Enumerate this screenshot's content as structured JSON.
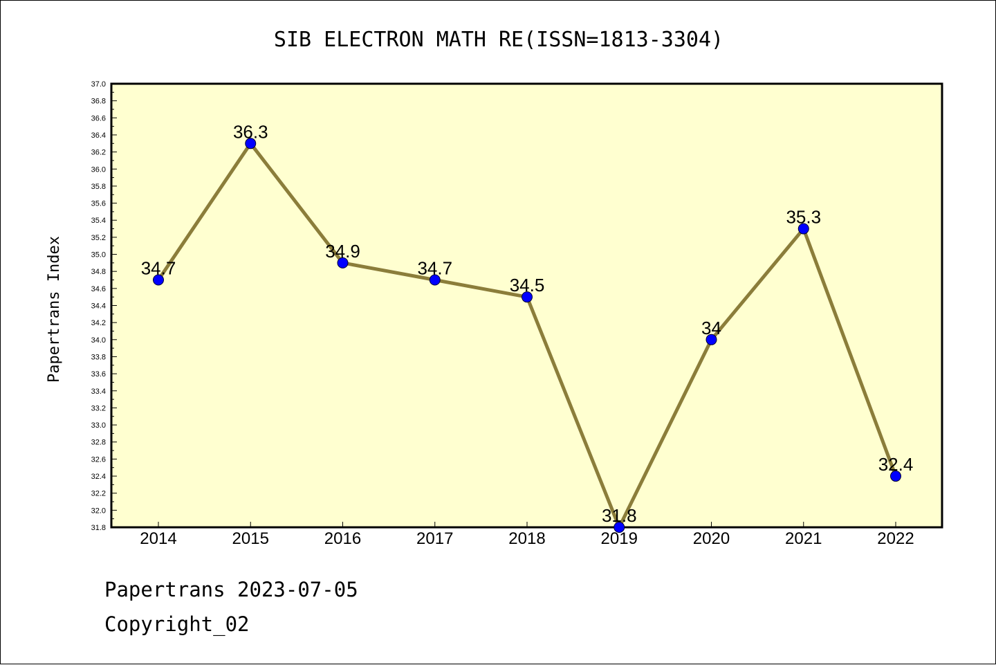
{
  "footer": {
    "line1": "Papertrans 2023-07-05",
    "line2": "Copyright_02"
  },
  "chart_data": {
    "type": "line",
    "title": "SIB ELECTRON MATH RE(ISSN=1813-3304)",
    "xlabel": "",
    "ylabel": "Papertrans Index",
    "categories": [
      "2014",
      "2015",
      "2016",
      "2017",
      "2018",
      "2019",
      "2020",
      "2021",
      "2022"
    ],
    "series": [
      {
        "values": [
          34.7,
          36.3,
          34.9,
          34.7,
          34.5,
          31.8,
          34.0,
          35.3,
          32.4
        ],
        "data_labels": [
          "34.7",
          "36.3",
          "34.9",
          "34.7",
          "34.5",
          "31.8",
          "34",
          "35.3",
          "32.4"
        ]
      }
    ],
    "ylim": [
      31.8,
      37.0
    ],
    "ytick_labels": [
      "31.8",
      "32.0",
      "32.2",
      "32.4",
      "32.6",
      "32.8",
      "33.0",
      "33.2",
      "33.4",
      "33.6",
      "33.8",
      "34.0",
      "34.2",
      "34.4",
      "34.6",
      "34.8",
      "35.0",
      "35.2",
      "35.4",
      "35.6",
      "35.8",
      "36.0",
      "36.2",
      "36.4",
      "36.6",
      "36.8",
      "37.0"
    ],
    "grid": false,
    "legend": "none",
    "colors": {
      "plot_background": "#ffffd0",
      "line": "#8b7d3a",
      "marker": "#0000ff"
    }
  }
}
